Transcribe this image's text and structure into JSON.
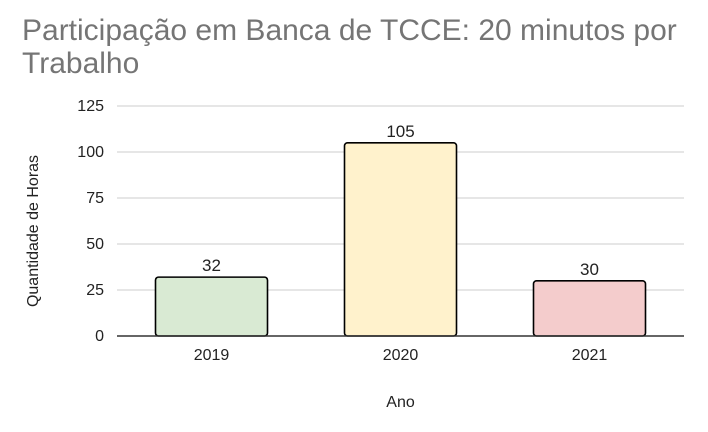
{
  "chart_data": {
    "type": "bar",
    "title": "Participação em Banca de TCCE: 20 minutos por Trabalho",
    "xlabel": "Ano",
    "ylabel": "Quantidade de Horas",
    "categories": [
      "2019",
      "2020",
      "2021"
    ],
    "values": [
      32,
      105,
      30
    ],
    "data_labels": [
      "32",
      "105",
      "30"
    ],
    "ylim": [
      0,
      125
    ],
    "yticks": [
      0,
      25,
      50,
      75,
      100,
      125
    ],
    "ytick_labels": [
      "0",
      "25",
      "50",
      "75",
      "100",
      "125"
    ],
    "grid": true,
    "bar_colors": [
      "#d9ead3",
      "#fff2cc",
      "#f4cccc"
    ],
    "bar_border_color": "#000000",
    "gridline_color": "#cccccc",
    "axis_color": "#333333",
    "title_color": "#757575",
    "legend": "none"
  }
}
